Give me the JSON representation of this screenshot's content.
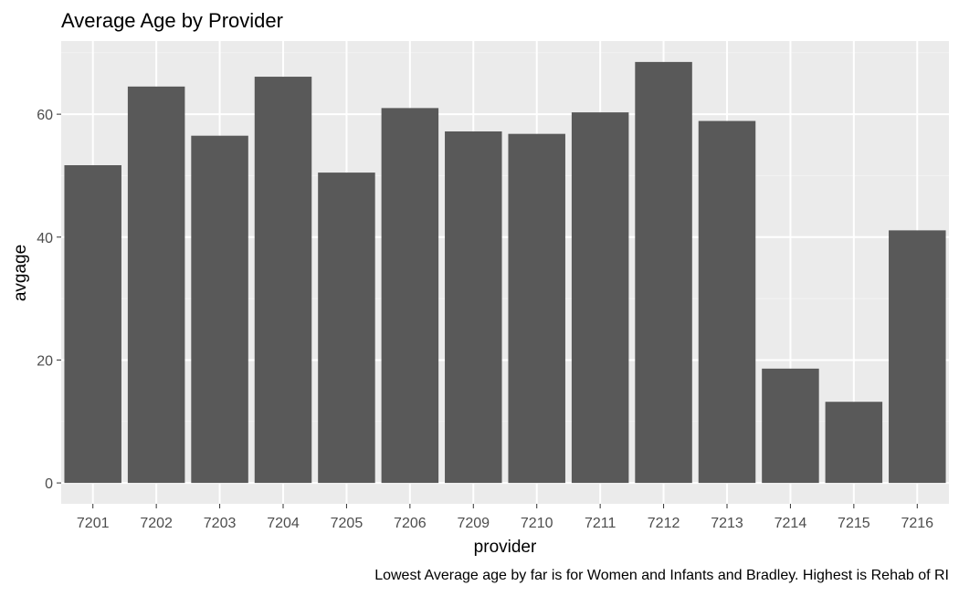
{
  "chart_data": {
    "type": "bar",
    "title": "Average Age by Provider",
    "xlabel": "provider",
    "ylabel": "avgage",
    "caption": "Lowest Average age by far is for Women and Infants and Bradley. Highest is Rehab of RI",
    "categories": [
      "7201",
      "7202",
      "7203",
      "7204",
      "7205",
      "7206",
      "7209",
      "7210",
      "7211",
      "7212",
      "7213",
      "7214",
      "7215",
      "7216"
    ],
    "values": [
      51.7,
      64.5,
      56.5,
      66.1,
      50.5,
      61.0,
      57.2,
      56.8,
      60.3,
      68.5,
      58.9,
      18.6,
      13.2,
      41.1
    ],
    "ylim": [
      -3.4,
      71.9
    ],
    "yticks": [
      0,
      20,
      40,
      60
    ],
    "yticklabels": [
      "0",
      "20",
      "40",
      "60"
    ],
    "grid": true,
    "legend": "none",
    "colors": {
      "bar": "#595959",
      "panel": "#ebebeb",
      "grid_major": "#ffffff",
      "grid_minor": "#f2f2f2",
      "axis_text": "#4d4d4d",
      "title_text": "#000000"
    }
  }
}
